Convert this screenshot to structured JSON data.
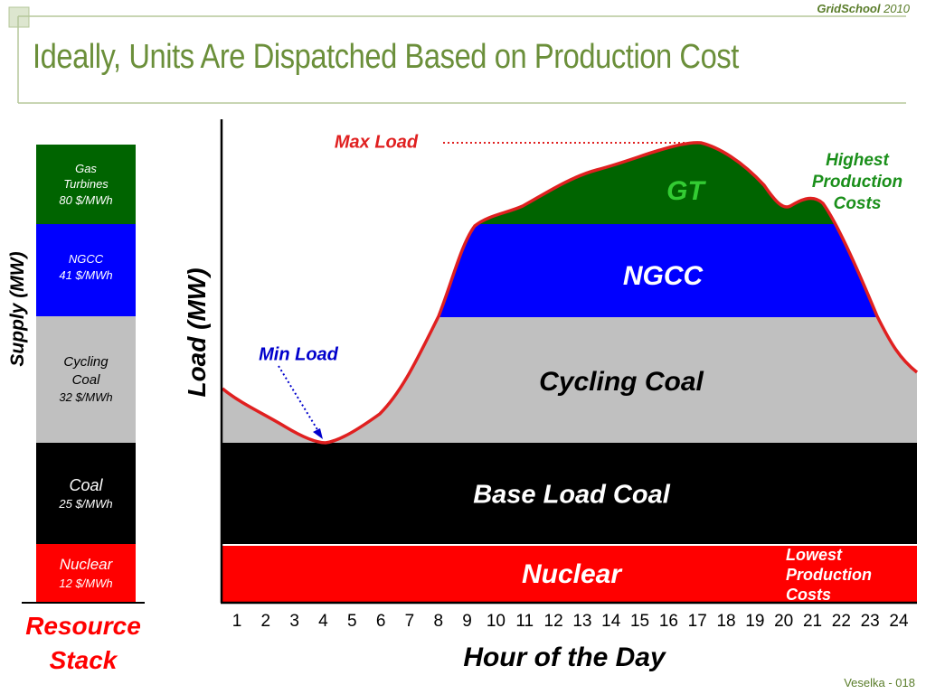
{
  "header": {
    "title": "Ideally, Units Are Dispatched Based on Production Cost",
    "brand_name": "GridSchool",
    "brand_year": "2010"
  },
  "footer": {
    "text": "Veselka  - 018"
  },
  "stack": {
    "axis_label": "Supply (MW)",
    "caption_line1": "Resource",
    "caption_line2": "Stack",
    "items": [
      {
        "name_line1": "Gas",
        "name_line2": "Turbines",
        "price": "80 $/MWh",
        "color": "#006400"
      },
      {
        "name_line1": "NGCC",
        "name_line2": "",
        "price": "41 $/MWh",
        "color": "#0000ff"
      },
      {
        "name_line1": "Cycling",
        "name_line2": "Coal",
        "price": "32 $/MWh",
        "color": "#c0c0c0"
      },
      {
        "name_line1": "Coal",
        "name_line2": "",
        "price": "25 $/MWh",
        "color": "#000000"
      },
      {
        "name_line1": "Nuclear",
        "name_line2": "",
        "price": "12 $/MWh",
        "color": "#ff0000"
      }
    ]
  },
  "chart": {
    "ylabel": "Load (MW)",
    "xlabel": "Hour of the Day",
    "hours": [
      "1",
      "2",
      "3",
      "4",
      "5",
      "6",
      "7",
      "8",
      "9",
      "10",
      "11",
      "12",
      "13",
      "14",
      "15",
      "16",
      "17",
      "18",
      "19",
      "20",
      "21",
      "22",
      "23",
      "24"
    ],
    "bands": {
      "gt": "GT",
      "ngcc": "NGCC",
      "cycling": "Cycling Coal",
      "base": "Base Load Coal",
      "nuclear": "Nuclear"
    },
    "annotations": {
      "max_load": "Max Load",
      "min_load": "Min Load",
      "highest_line1": "Highest",
      "highest_line2": "Production",
      "highest_line3": "Costs",
      "lowest_line1": "Lowest",
      "lowest_line2": "Production",
      "lowest_line3": "Costs"
    },
    "colors": {
      "gt": "#006400",
      "ngcc": "#0000ff",
      "cycling": "#c0c0c0",
      "base": "#000000",
      "nuclear": "#ff0000",
      "load_curve": "#e02020",
      "annotation_green": "#1a8f1a",
      "min_arrow": "#0000cc"
    }
  }
}
